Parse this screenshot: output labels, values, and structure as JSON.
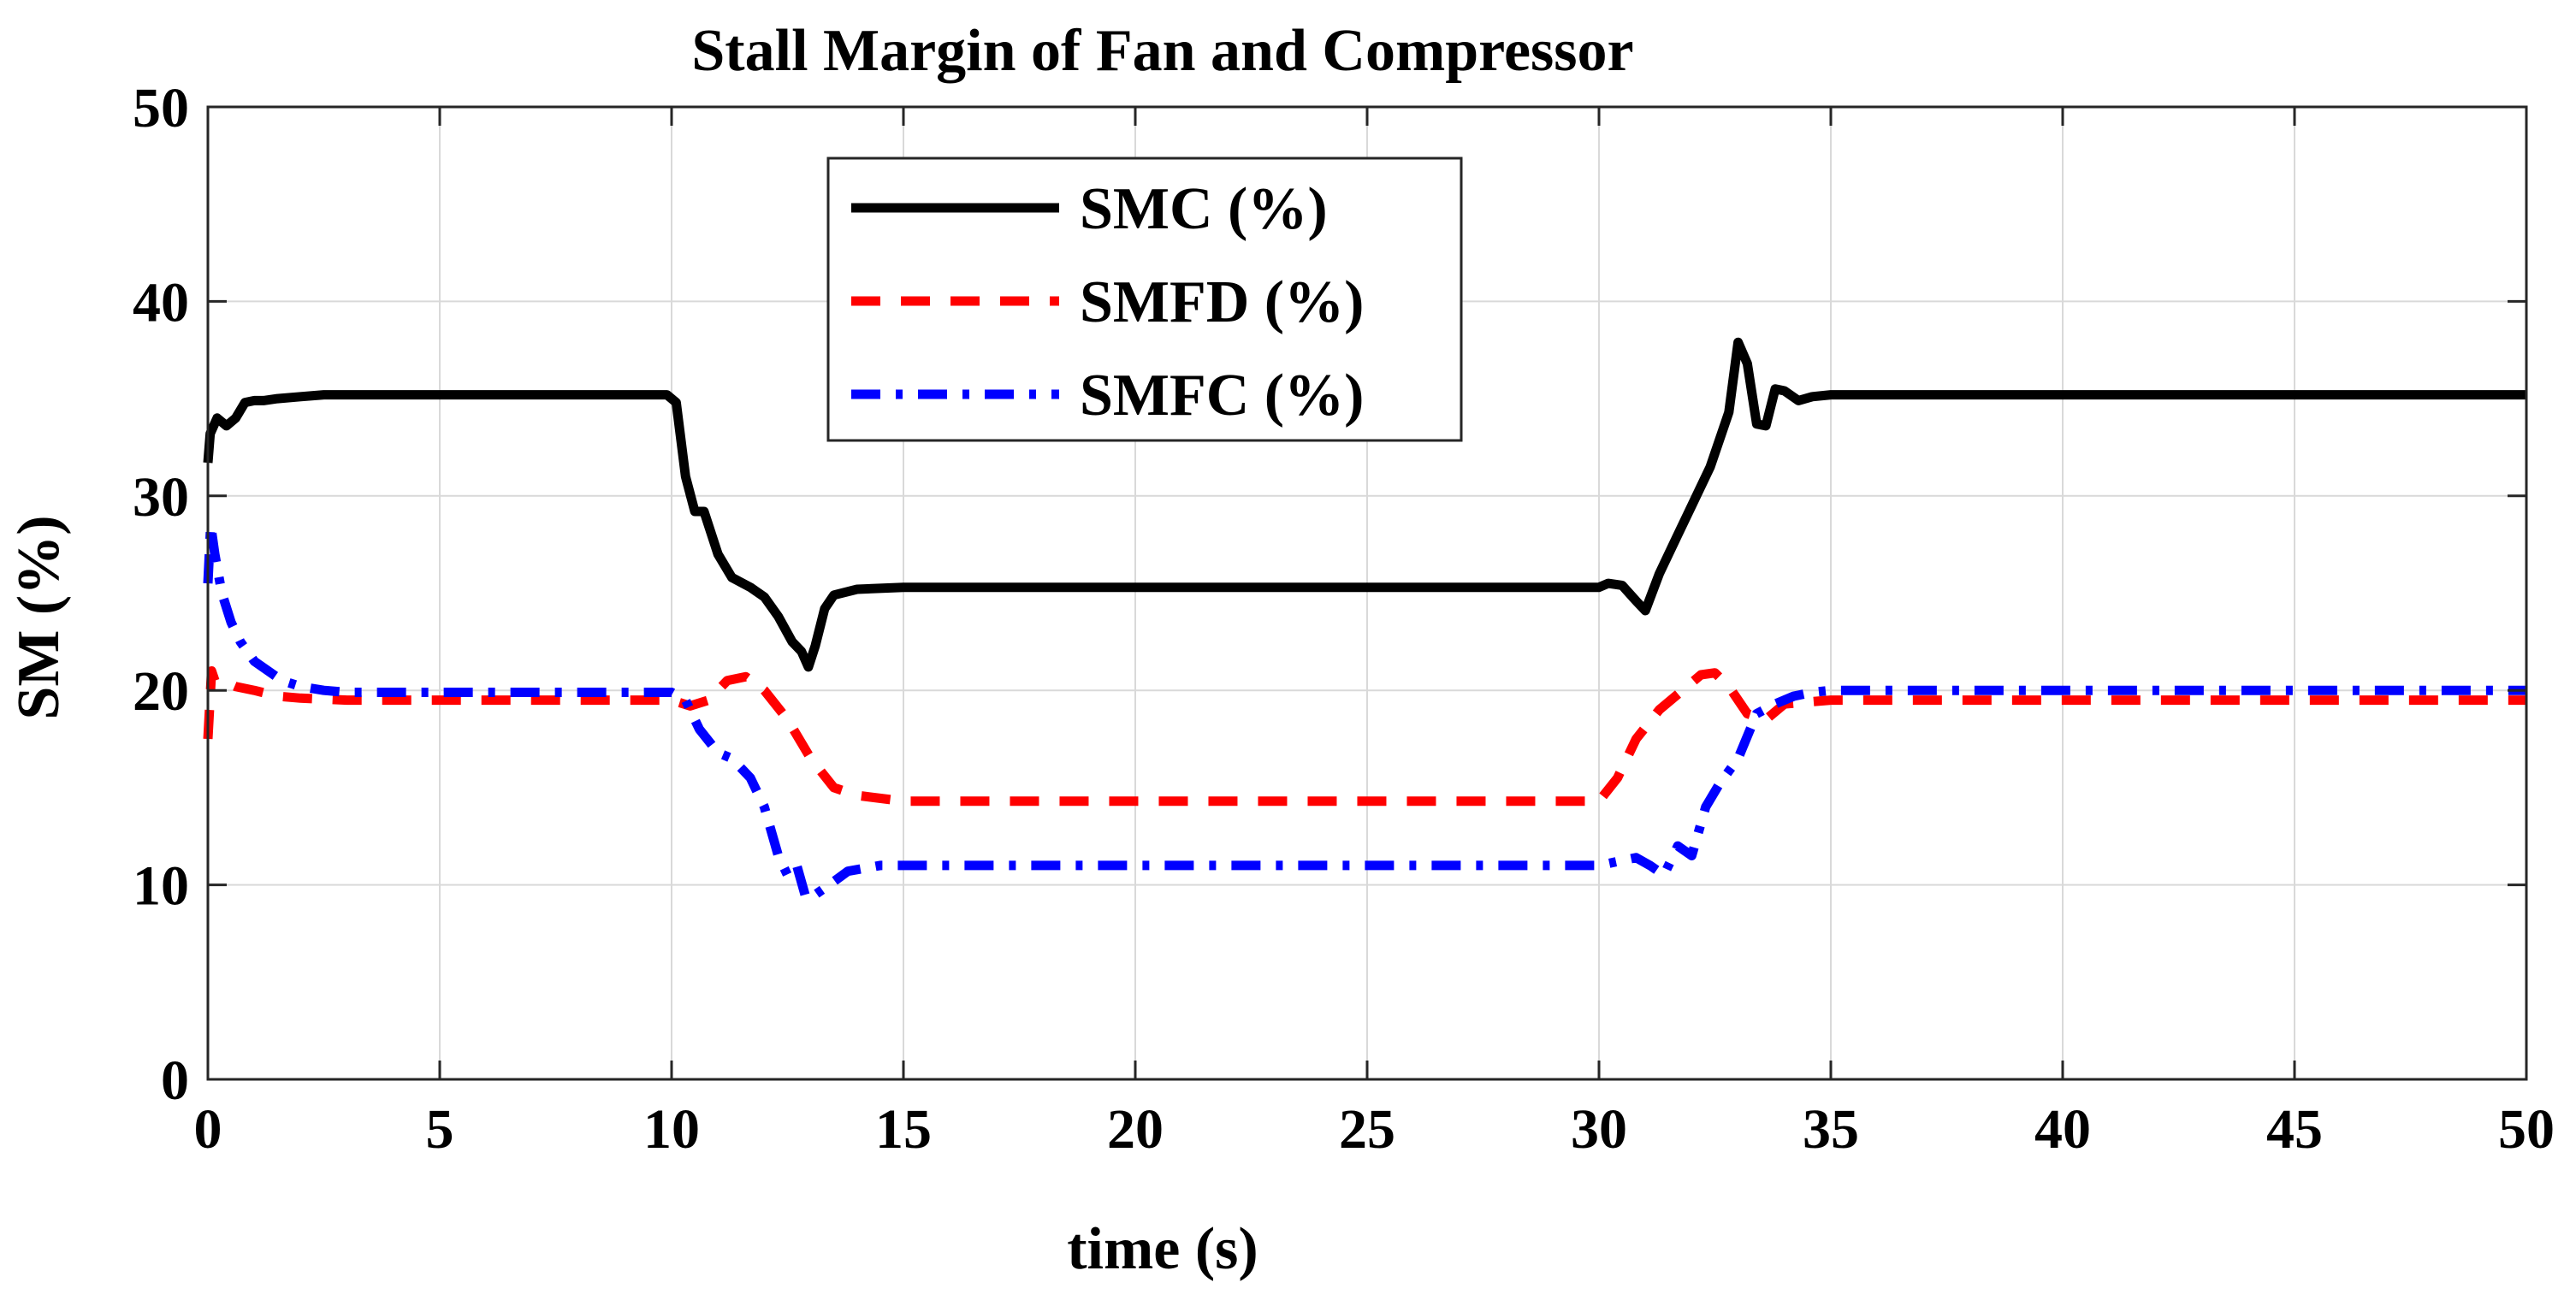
{
  "chart_data": {
    "type": "line",
    "title": "Stall Margin of Fan and Compressor",
    "xlabel": "time (s)",
    "ylabel": "SM (%)",
    "xlim": [
      0,
      50
    ],
    "ylim": [
      0,
      50
    ],
    "xticks": [
      0,
      5,
      10,
      15,
      20,
      25,
      30,
      35,
      40,
      45,
      50
    ],
    "yticks": [
      0,
      10,
      20,
      30,
      40,
      50
    ],
    "grid": true,
    "legend_position": "top-center",
    "series": [
      {
        "name": "SMC (%)",
        "color": "#000000",
        "style": "solid",
        "x": [
          0,
          0.05,
          0.2,
          0.4,
          0.6,
          0.8,
          1.0,
          1.2,
          1.5,
          2.0,
          2.5,
          5,
          9.9,
          10.1,
          10.3,
          10.5,
          10.7,
          11.0,
          11.3,
          11.7,
          12.0,
          12.3,
          12.6,
          12.8,
          12.95,
          13.1,
          13.3,
          13.5,
          14.0,
          15,
          20,
          30,
          30.2,
          30.5,
          30.8,
          31.0,
          31.3,
          31.7,
          32.0,
          32.4,
          32.8,
          33.0,
          33.2,
          33.4,
          33.6,
          33.8,
          34.0,
          34.3,
          34.6,
          35.0,
          36,
          40,
          45,
          50
        ],
        "values": [
          31.7,
          33.2,
          34.0,
          33.6,
          34.0,
          34.8,
          34.9,
          34.9,
          35.0,
          35.1,
          35.2,
          35.2,
          35.2,
          34.8,
          31.0,
          29.2,
          29.2,
          27.0,
          25.8,
          25.3,
          24.8,
          23.8,
          22.5,
          22.0,
          21.2,
          22.3,
          24.2,
          24.9,
          25.2,
          25.3,
          25.3,
          25.3,
          25.5,
          25.4,
          24.6,
          24.1,
          26.0,
          28.0,
          29.5,
          31.5,
          34.3,
          37.9,
          36.8,
          33.7,
          33.6,
          35.5,
          35.4,
          34.9,
          35.1,
          35.2,
          35.2,
          35.2,
          35.2,
          35.2
        ]
      },
      {
        "name": "SMFD (%)",
        "color": "#ff0000",
        "style": "dashed",
        "x": [
          0,
          0.08,
          0.15,
          0.3,
          0.6,
          1.0,
          1.5,
          2.0,
          3.0,
          5,
          10.0,
          10.4,
          10.8,
          11.2,
          11.6,
          12.0,
          12.5,
          13.0,
          13.5,
          14.0,
          15,
          20,
          30,
          30.4,
          30.8,
          31.3,
          31.8,
          32.2,
          32.5,
          32.8,
          33.2,
          33.6,
          34.0,
          35,
          40,
          50
        ],
        "values": [
          17.5,
          21.0,
          20.5,
          20.5,
          20.2,
          20.0,
          19.7,
          19.6,
          19.5,
          19.5,
          19.5,
          19.2,
          19.5,
          20.5,
          20.7,
          20.0,
          18.5,
          16.5,
          15.0,
          14.6,
          14.3,
          14.3,
          14.3,
          15.5,
          17.5,
          19.0,
          20.0,
          20.8,
          20.9,
          20.2,
          18.8,
          18.5,
          19.3,
          19.5,
          19.5,
          19.5
        ]
      },
      {
        "name": "SMFC (%)",
        "color": "#0000ff",
        "style": "dashdot",
        "x": [
          0,
          0.06,
          0.15,
          0.3,
          0.5,
          0.7,
          1.0,
          1.3,
          1.6,
          2.0,
          2.5,
          3.0,
          5,
          10.0,
          10.3,
          10.6,
          11.0,
          11.3,
          11.7,
          12.0,
          12.3,
          12.5,
          12.7,
          12.9,
          13.1,
          13.4,
          13.8,
          14.5,
          15,
          20,
          30,
          30.4,
          30.8,
          31.1,
          31.4,
          31.7,
          32.0,
          32.3,
          32.6,
          33.0,
          33.4,
          33.8,
          34.2,
          34.6,
          35,
          40,
          50
        ],
        "values": [
          25.5,
          28.5,
          27.0,
          25.0,
          23.5,
          22.5,
          21.5,
          21.0,
          20.5,
          20.2,
          20.0,
          19.9,
          19.9,
          19.9,
          19.5,
          18.0,
          16.8,
          16.5,
          15.5,
          14.0,
          11.5,
          10.5,
          11.0,
          9.3,
          9.5,
          10.0,
          10.7,
          11.0,
          11.0,
          11.0,
          11.0,
          11.2,
          11.4,
          11.0,
          10.5,
          12.0,
          11.5,
          14.0,
          15.2,
          16.5,
          18.8,
          19.3,
          19.7,
          19.9,
          20.0,
          20.0,
          20.0
        ]
      }
    ]
  }
}
